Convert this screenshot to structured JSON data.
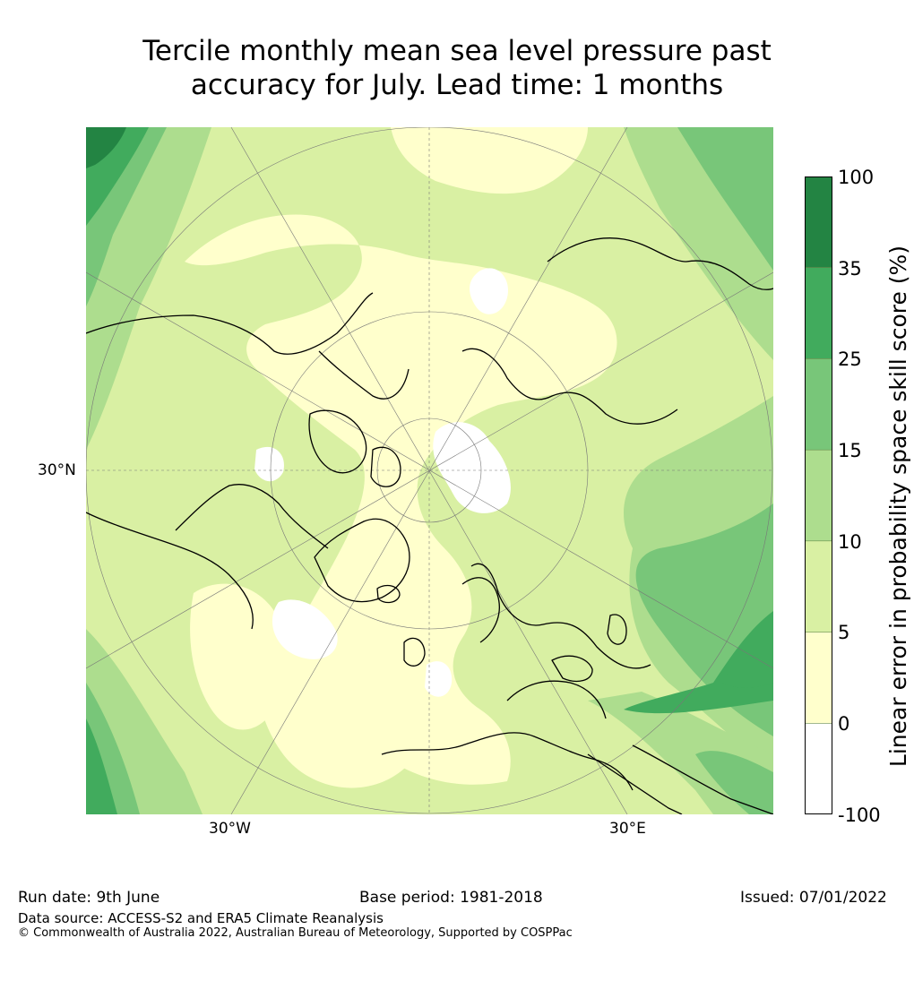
{
  "header": {
    "title_line1": "Tercile monthly mean sea level pressure past",
    "title_line2": "accuracy for July. Lead time: 1 months"
  },
  "map": {
    "projection": "north-polar-stereographic",
    "labels": {
      "lat_30n": "30°N",
      "lon_30w": "30°W",
      "lon_30e": "30°E"
    },
    "colors": {
      "neg": "#ffffff",
      "c0_5": "#ffffcc",
      "c5_10": "#d9f0a3",
      "c10_15": "#addd8e",
      "c15_25": "#78c679",
      "c25_35": "#41ab5d",
      "c35_100": "#238443",
      "coast": "#000000",
      "grid": "#777777"
    }
  },
  "colorbar": {
    "title": "Linear error in probability space skill score (%)",
    "ticks": [
      "100",
      "35",
      "25",
      "15",
      "10",
      "5",
      "0",
      "-100"
    ],
    "bins": [
      {
        "from": -100,
        "to": 0,
        "color": "#ffffff"
      },
      {
        "from": 0,
        "to": 5,
        "color": "#ffffcc"
      },
      {
        "from": 5,
        "to": 10,
        "color": "#d9f0a3"
      },
      {
        "from": 10,
        "to": 15,
        "color": "#addd8e"
      },
      {
        "from": 15,
        "to": 25,
        "color": "#78c679"
      },
      {
        "from": 25,
        "to": 35,
        "color": "#41ab5d"
      },
      {
        "from": 35,
        "to": 100,
        "color": "#238443"
      }
    ]
  },
  "footer": {
    "run_date": "Run date: 9th June",
    "base_period": "Base period: 1981-2018",
    "issued": "Issued: 07/01/2022",
    "data_source": "Data source: ACCESS-S2 and ERA5 Climate Reanalysis",
    "copyright": "© Commonwealth of Australia 2022, Australian Bureau of Meteorology, Supported by COSPPac"
  }
}
